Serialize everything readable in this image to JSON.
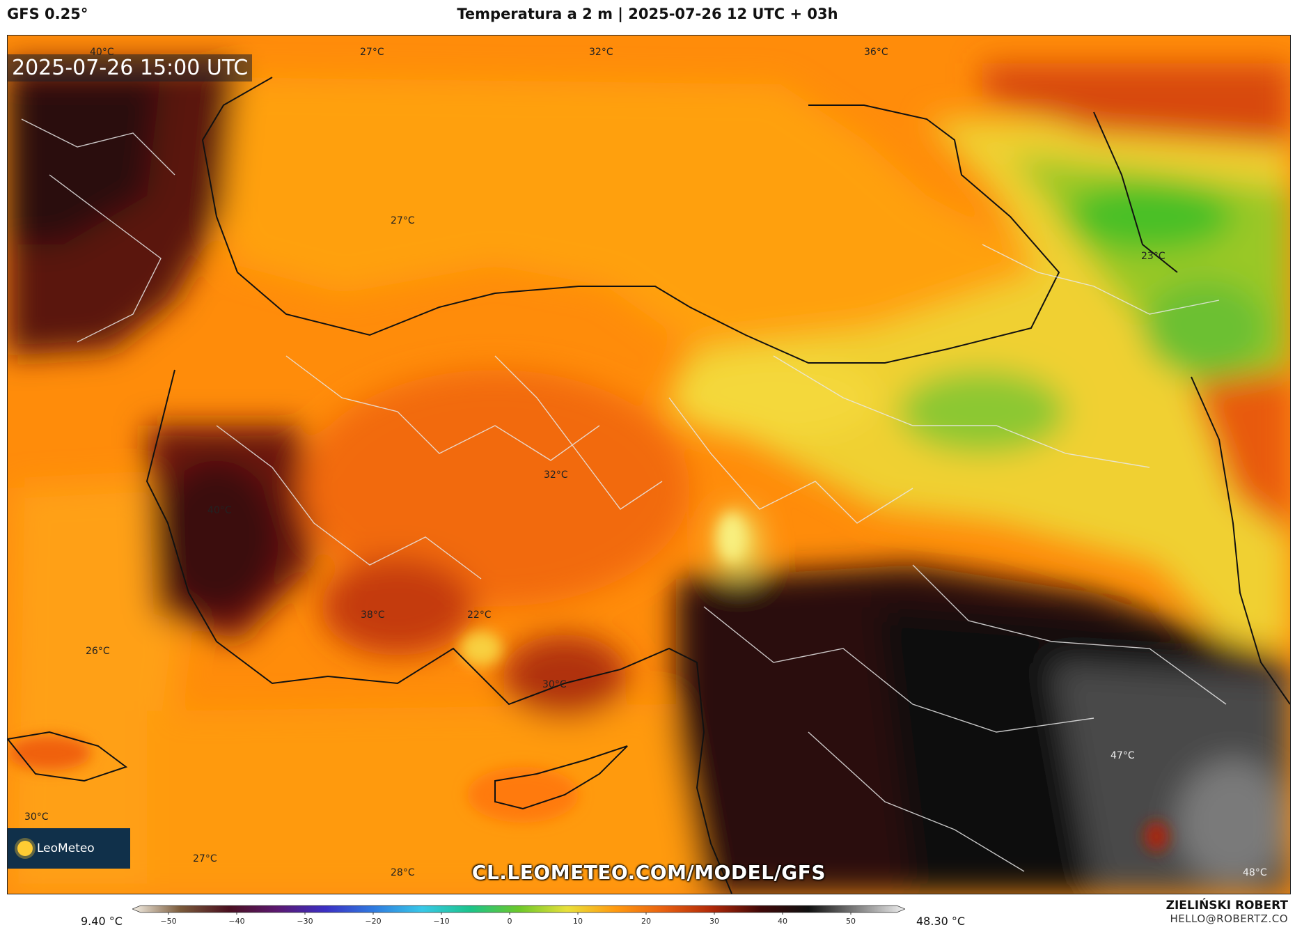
{
  "header": {
    "model": "GFS 0.25°",
    "title": "Temperatura a 2 m | 2025-07-26 12 UTC + 03h"
  },
  "map": {
    "valid_time": "2025-07-26 15:00 UTC",
    "watermark_url": "CL.LEOMETEO.COM/MODEL/GFS",
    "logo_text": "LeoMeteo",
    "temperature_labels": [
      "40°C",
      "27°C",
      "32°C",
      "36°C",
      "27°C",
      "23°C",
      "32°C",
      "40°C",
      "38°C",
      "22°C",
      "26°C",
      "30°C",
      "47°C",
      "30°C",
      "27°C",
      "28°C",
      "48°C"
    ]
  },
  "colorbar": {
    "min_label": "9.40 °C",
    "max_label": "48.30 °C",
    "ticks": [
      "−50",
      "−40",
      "−30",
      "−20",
      "−10",
      "0",
      "10",
      "20",
      "30",
      "40",
      "50"
    ],
    "stops": [
      "#f5f0e6",
      "#7a5a3a",
      "#4a1020",
      "#5b1870",
      "#3b2fc4",
      "#2f7be0",
      "#38c8e8",
      "#1cc48a",
      "#6cc82a",
      "#e8e03a",
      "#ff9a10",
      "#e86010",
      "#b02808",
      "#400808",
      "#101010",
      "#808080",
      "#f0f0f0"
    ]
  },
  "author": {
    "name": "ZIELIŃSKI ROBERT",
    "email": "HELLO@ROBERTZ.CO"
  }
}
